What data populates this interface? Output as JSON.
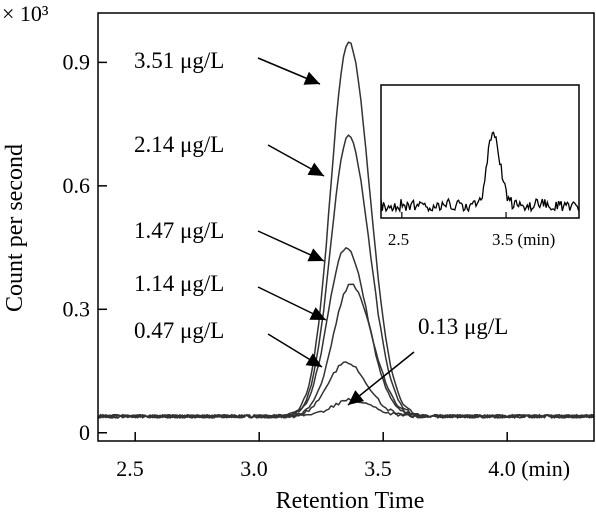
{
  "chart_data": {
    "type": "line",
    "multiplier_label": "× 10³",
    "xlabel": "Retention Time",
    "ylabel": "Count per second",
    "xlim": [
      2.35,
      4.35
    ],
    "ylim": [
      -0.02,
      1.02
    ],
    "x_ticks": [
      {
        "value": 2.5,
        "label": "2.5"
      },
      {
        "value": 3.0,
        "label": "3.0"
      },
      {
        "value": 3.5,
        "label": "3.5"
      },
      {
        "value": 4.0,
        "label": "4.0 (min)"
      }
    ],
    "y_ticks": [
      {
        "value": 0,
        "label": "0"
      },
      {
        "value": 0.3,
        "label": "0.3"
      },
      {
        "value": 0.6,
        "label": "0.6"
      },
      {
        "value": 0.9,
        "label": "0.9"
      }
    ],
    "baseline": 0.04,
    "series": [
      {
        "name": "3.51 μg/L",
        "peak_rt": 3.36,
        "peak_height": 0.95
      },
      {
        "name": "2.14 μg/L",
        "peak_rt": 3.36,
        "peak_height": 0.72
      },
      {
        "name": "1.47 μg/L",
        "peak_rt": 3.35,
        "peak_height": 0.45
      },
      {
        "name": "1.14 μg/L",
        "peak_rt": 3.37,
        "peak_height": 0.36
      },
      {
        "name": "0.47 μg/L",
        "peak_rt": 3.35,
        "peak_height": 0.17
      },
      {
        "name": "0.13 μg/L",
        "peak_rt": 3.37,
        "peak_height": 0.08
      }
    ],
    "inset": {
      "x_ticks": [
        {
          "value": 2.5,
          "label": "2.5"
        },
        {
          "value": 3.5,
          "label": "3.5 (min)"
        }
      ]
    },
    "grid": false,
    "legend": "none"
  }
}
